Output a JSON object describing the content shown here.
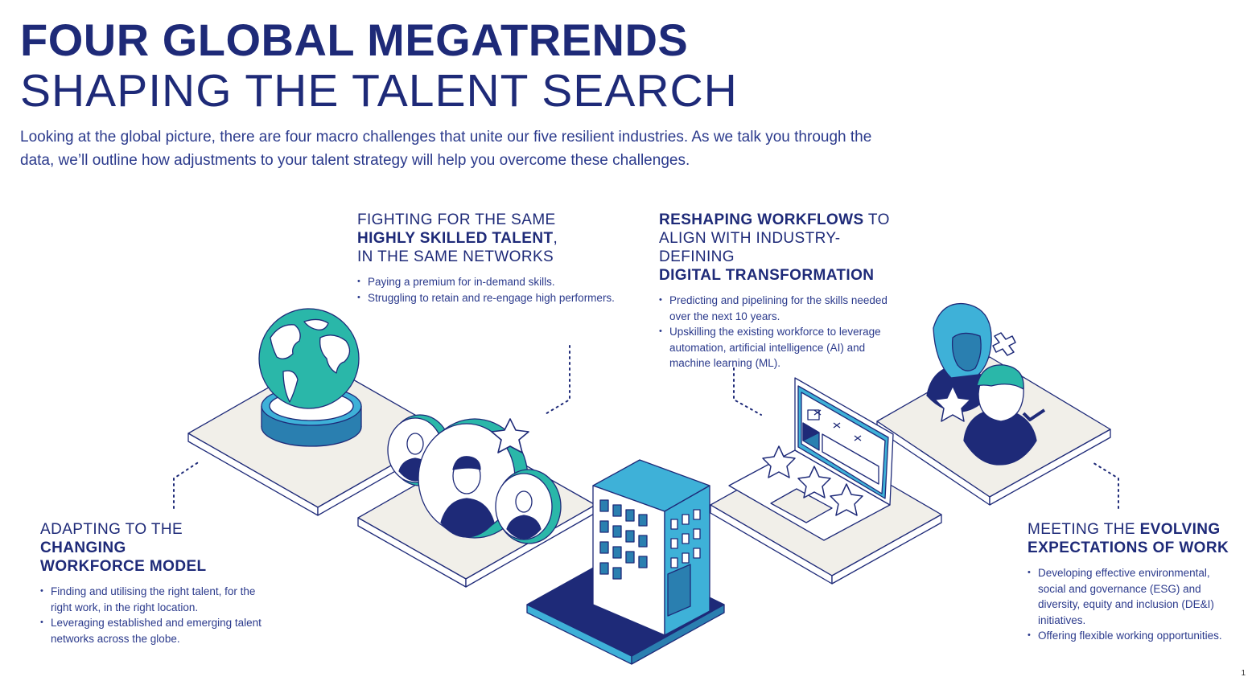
{
  "title": {
    "line1": "FOUR GLOBAL MEGATRENDS",
    "line2": "SHAPING THE TALENT SEARCH"
  },
  "intro": "Looking at the global picture, there are four macro challenges that unite our five resilient industries. As we talk you through the data, we’ll outline how adjustments to your talent strategy will help you overcome these challenges.",
  "trends": {
    "talent": {
      "l1": "FIGHTING FOR THE SAME",
      "l2": "HIGHLY SKILLED TALENT",
      "l2b": ",",
      "l3": "IN THE SAME NETWORKS",
      "bullets": [
        "Paying a premium for in-demand skills.",
        "Struggling to retain and re-engage high performers."
      ]
    },
    "workflows": {
      "l1a": "RESHAPING WORKFLOWS",
      "l1b": " TO",
      "l2": "ALIGN WITH INDUSTRY-DEFINING",
      "l3": "DIGITAL TRANSFORMATION",
      "bullets": [
        "Predicting and pipelining for the skills needed over the next 10 years.",
        "Upskilling the existing workforce to leverage automation, artificial intelligence (AI) and machine learning (ML)."
      ]
    },
    "workforce": {
      "l1a": "ADAPTING TO THE ",
      "l1b": "CHANGING",
      "l2": "WORKFORCE MODEL",
      "bullets": [
        "Finding and utilising the right talent, for the right work, in the right location.",
        "Leveraging established and emerging talent networks across the globe."
      ]
    },
    "expectations": {
      "l1a": "MEETING THE ",
      "l1b": "EVOLVING",
      "l2": "EXPECTATIONS OF WORK",
      "bullets": [
        "Developing effective environmental, social and governance (ESG) and diversity, equity and inclusion (DE&I) initiatives.",
        "Offering flexible working opportunities."
      ]
    }
  },
  "page_number": "1",
  "colors": {
    "navy": "#1e2a78",
    "teal": "#2ab7a9",
    "sky": "#3eb1d8",
    "steel": "#2a7fb0",
    "platform": "#f1efe9"
  },
  "icons": [
    "globe-icon",
    "people-icon",
    "star-icon",
    "building-icon",
    "laptop-icon",
    "avatar-icon",
    "check-icon",
    "cross-icon"
  ]
}
